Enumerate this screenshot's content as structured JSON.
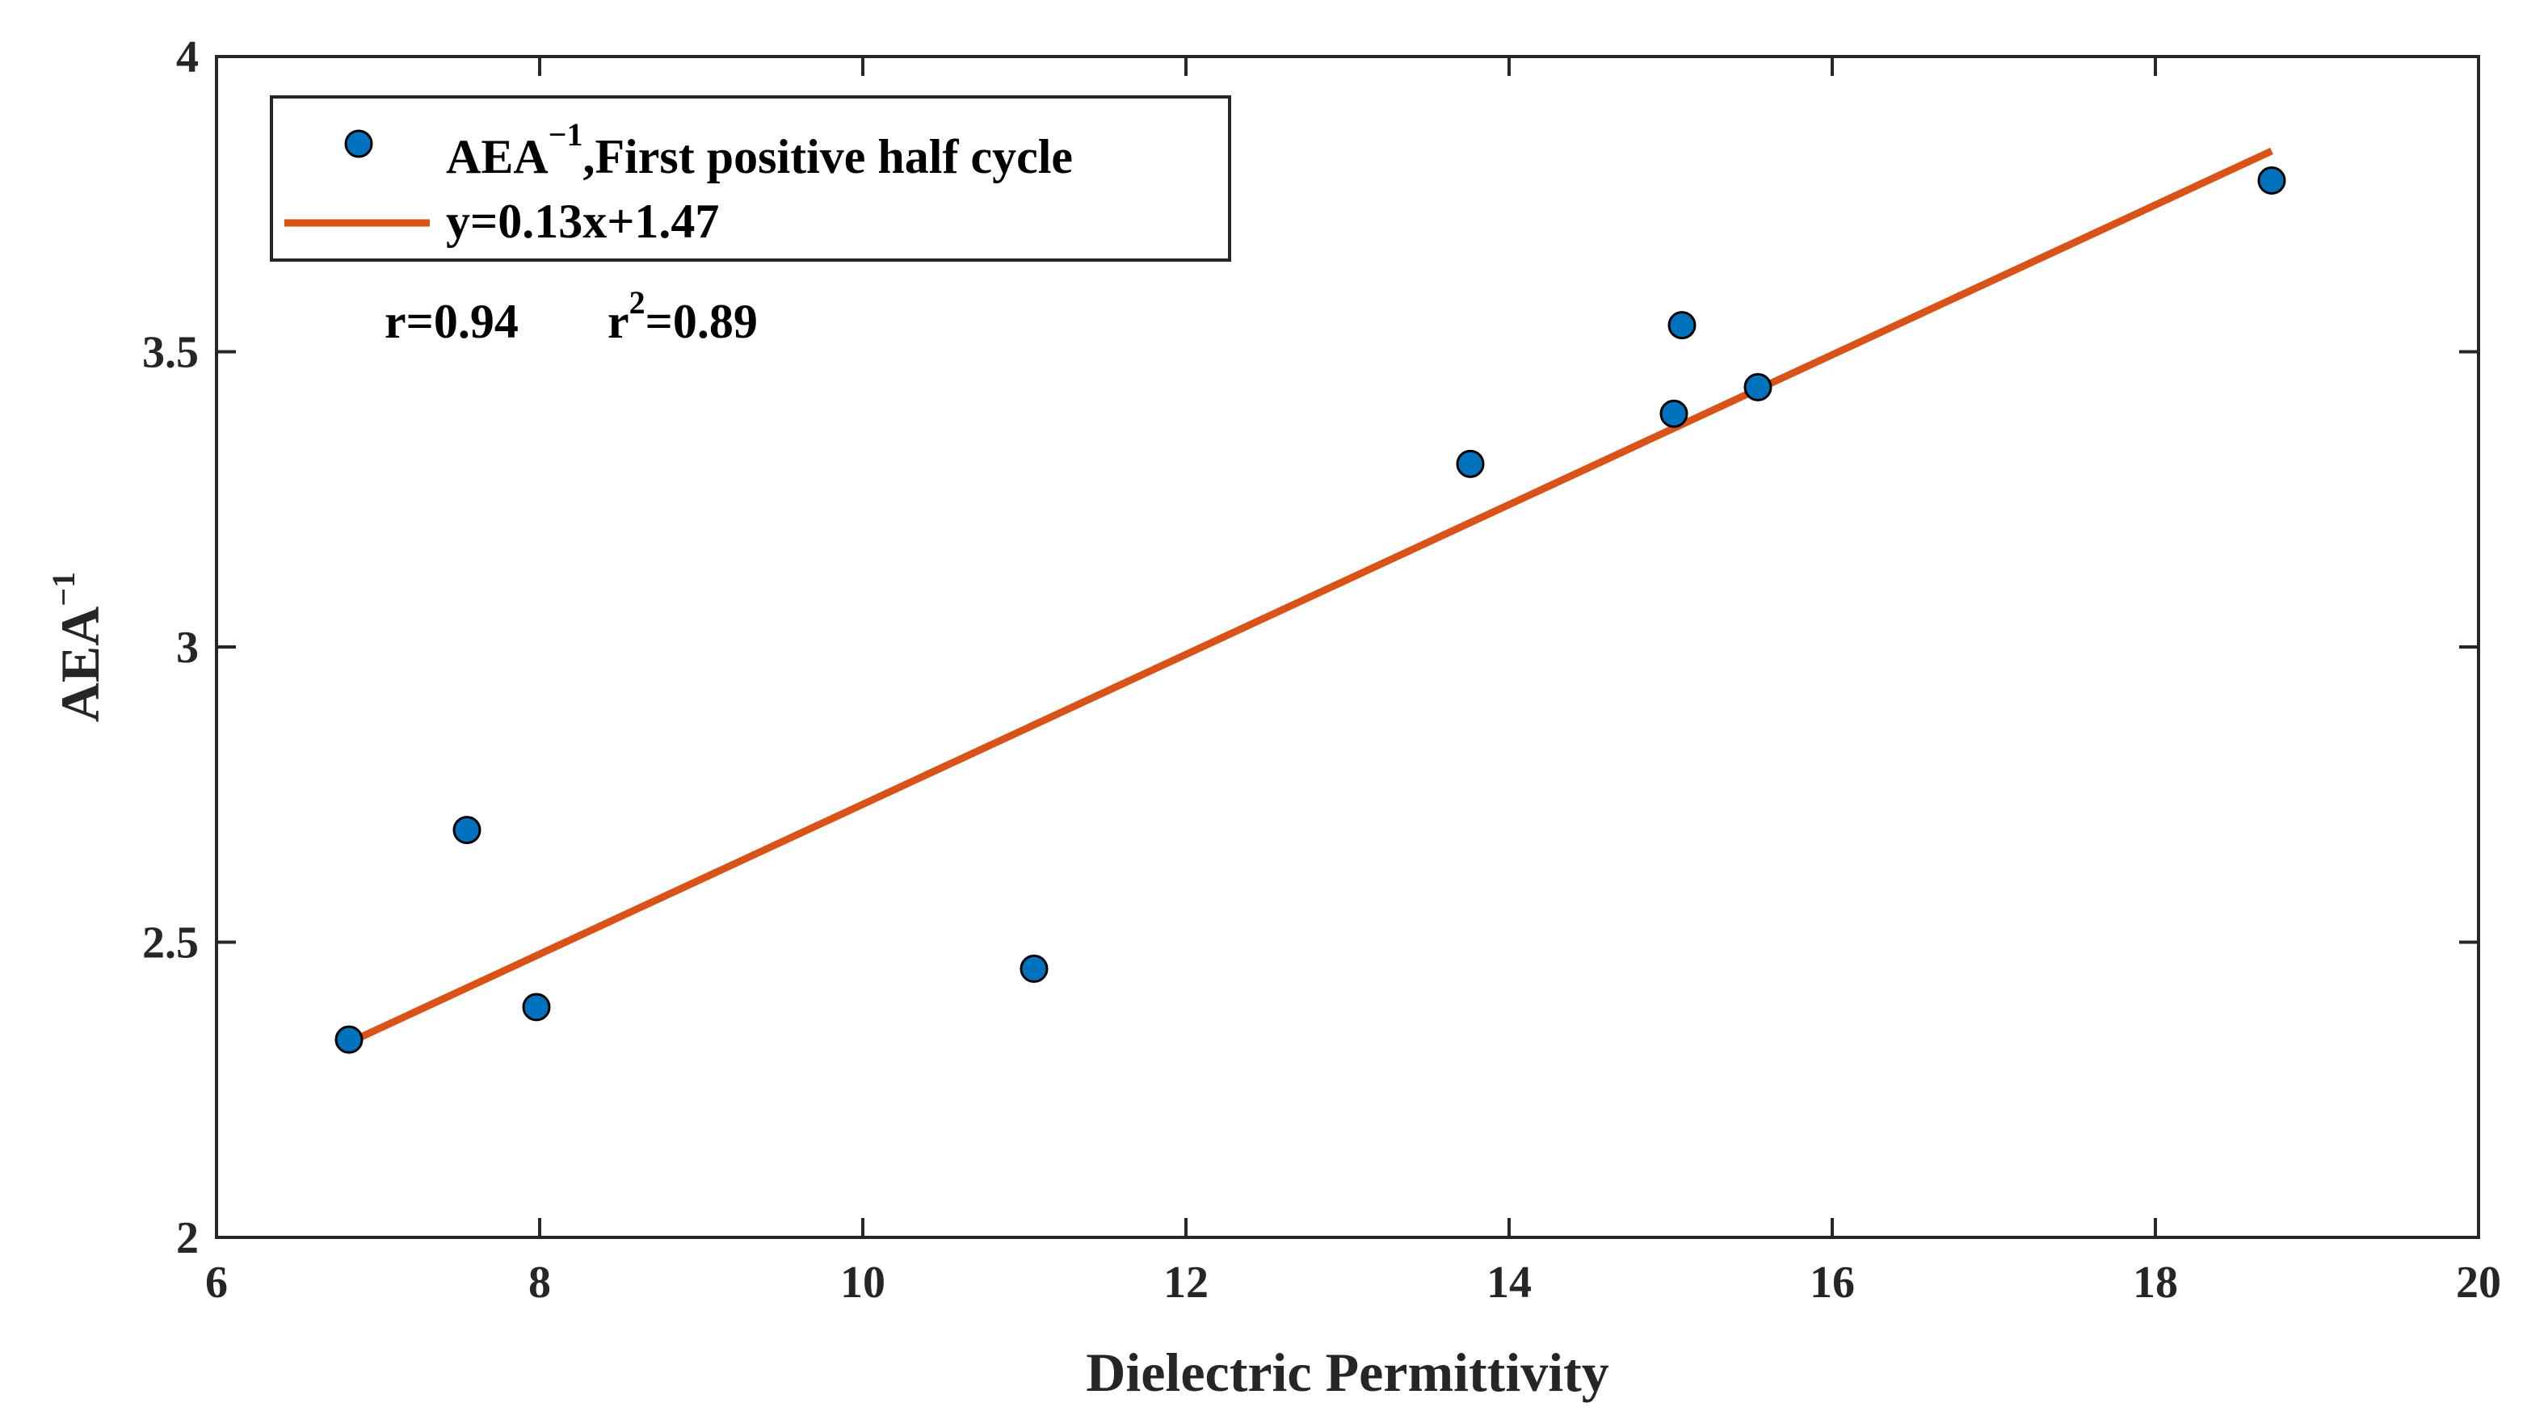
{
  "chart_data": {
    "type": "scatter",
    "title": "",
    "xlabel": "Dielectric Permittivity",
    "ylabel": {
      "base": "AEA",
      "sup": "−1"
    },
    "xlim": [
      6,
      20
    ],
    "ylim": [
      2,
      4
    ],
    "xticks": [
      6,
      8,
      10,
      12,
      14,
      16,
      18,
      20
    ],
    "yticks": [
      2,
      2.5,
      3,
      3.5,
      4
    ],
    "ytick_labels": [
      "2",
      "2.5",
      "3",
      "3.5",
      "4"
    ],
    "grid": false,
    "legend_position": "top-left",
    "series": [
      {
        "name": "AEA⁻¹,First positive half cycle",
        "legend": {
          "base": "AEA",
          "sup": "−1",
          "rest": ",First positive half cycle"
        },
        "kind": "scatter",
        "color": "#0072BD",
        "points": [
          {
            "x": 6.82,
            "y": 2.335
          },
          {
            "x": 7.55,
            "y": 2.69
          },
          {
            "x": 7.98,
            "y": 2.39
          },
          {
            "x": 11.06,
            "y": 2.455
          },
          {
            "x": 13.76,
            "y": 3.31
          },
          {
            "x": 15.02,
            "y": 3.395
          },
          {
            "x": 15.07,
            "y": 3.545
          },
          {
            "x": 15.54,
            "y": 3.44
          },
          {
            "x": 18.72,
            "y": 3.79
          }
        ]
      },
      {
        "name": "y=0.13x+1.47",
        "kind": "line",
        "color": "#D95319",
        "x": [
          6.82,
          18.72
        ],
        "y": [
          2.33,
          3.84
        ]
      }
    ],
    "annotations": [
      {
        "id": "r",
        "text": "r=0.94"
      },
      {
        "id": "r2",
        "base": "r",
        "sup": "2",
        "rest": "=0.89"
      }
    ]
  }
}
